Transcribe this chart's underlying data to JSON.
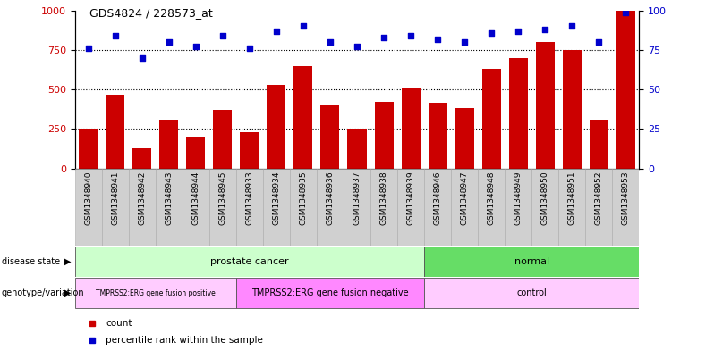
{
  "title": "GDS4824 / 228573_at",
  "samples": [
    "GSM1348940",
    "GSM1348941",
    "GSM1348942",
    "GSM1348943",
    "GSM1348944",
    "GSM1348945",
    "GSM1348933",
    "GSM1348934",
    "GSM1348935",
    "GSM1348936",
    "GSM1348937",
    "GSM1348938",
    "GSM1348939",
    "GSM1348946",
    "GSM1348947",
    "GSM1348948",
    "GSM1348949",
    "GSM1348950",
    "GSM1348951",
    "GSM1348952",
    "GSM1348953"
  ],
  "counts": [
    250,
    470,
    130,
    310,
    200,
    370,
    230,
    530,
    650,
    400,
    250,
    420,
    510,
    415,
    380,
    630,
    700,
    800,
    750,
    310,
    1000
  ],
  "percentiles": [
    76,
    84,
    70,
    80,
    77,
    84,
    76,
    87,
    90,
    80,
    77,
    83,
    84,
    82,
    80,
    86,
    87,
    88,
    90,
    80,
    99
  ],
  "bar_color": "#cc0000",
  "dot_color": "#0000cc",
  "disease_state_groups": [
    {
      "label": "prostate cancer",
      "start": 0,
      "end": 13,
      "color": "#ccffcc"
    },
    {
      "label": "normal",
      "start": 13,
      "end": 21,
      "color": "#66dd66"
    }
  ],
  "genotype_groups": [
    {
      "label": "TMPRSS2:ERG gene fusion positive",
      "start": 0,
      "end": 6,
      "color": "#ffccff"
    },
    {
      "label": "TMPRSS2:ERG gene fusion negative",
      "start": 6,
      "end": 13,
      "color": "#ff88ff"
    },
    {
      "label": "control",
      "start": 13,
      "end": 21,
      "color": "#ffccff"
    }
  ],
  "ylim_left": [
    0,
    1000
  ],
  "ylim_right": [
    0,
    100
  ],
  "yticks_left": [
    0,
    250,
    500,
    750,
    1000
  ],
  "yticks_right": [
    0,
    25,
    50,
    75,
    100
  ],
  "grid_values": [
    250,
    500,
    750
  ],
  "background_color": "#ffffff",
  "legend_items": [
    {
      "label": "count",
      "color": "#cc0000"
    },
    {
      "label": "percentile rank within the sample",
      "color": "#0000cc"
    }
  ],
  "tick_bg_color": "#cccccc",
  "label_fontsize": 7,
  "tick_fontsize": 6.5
}
